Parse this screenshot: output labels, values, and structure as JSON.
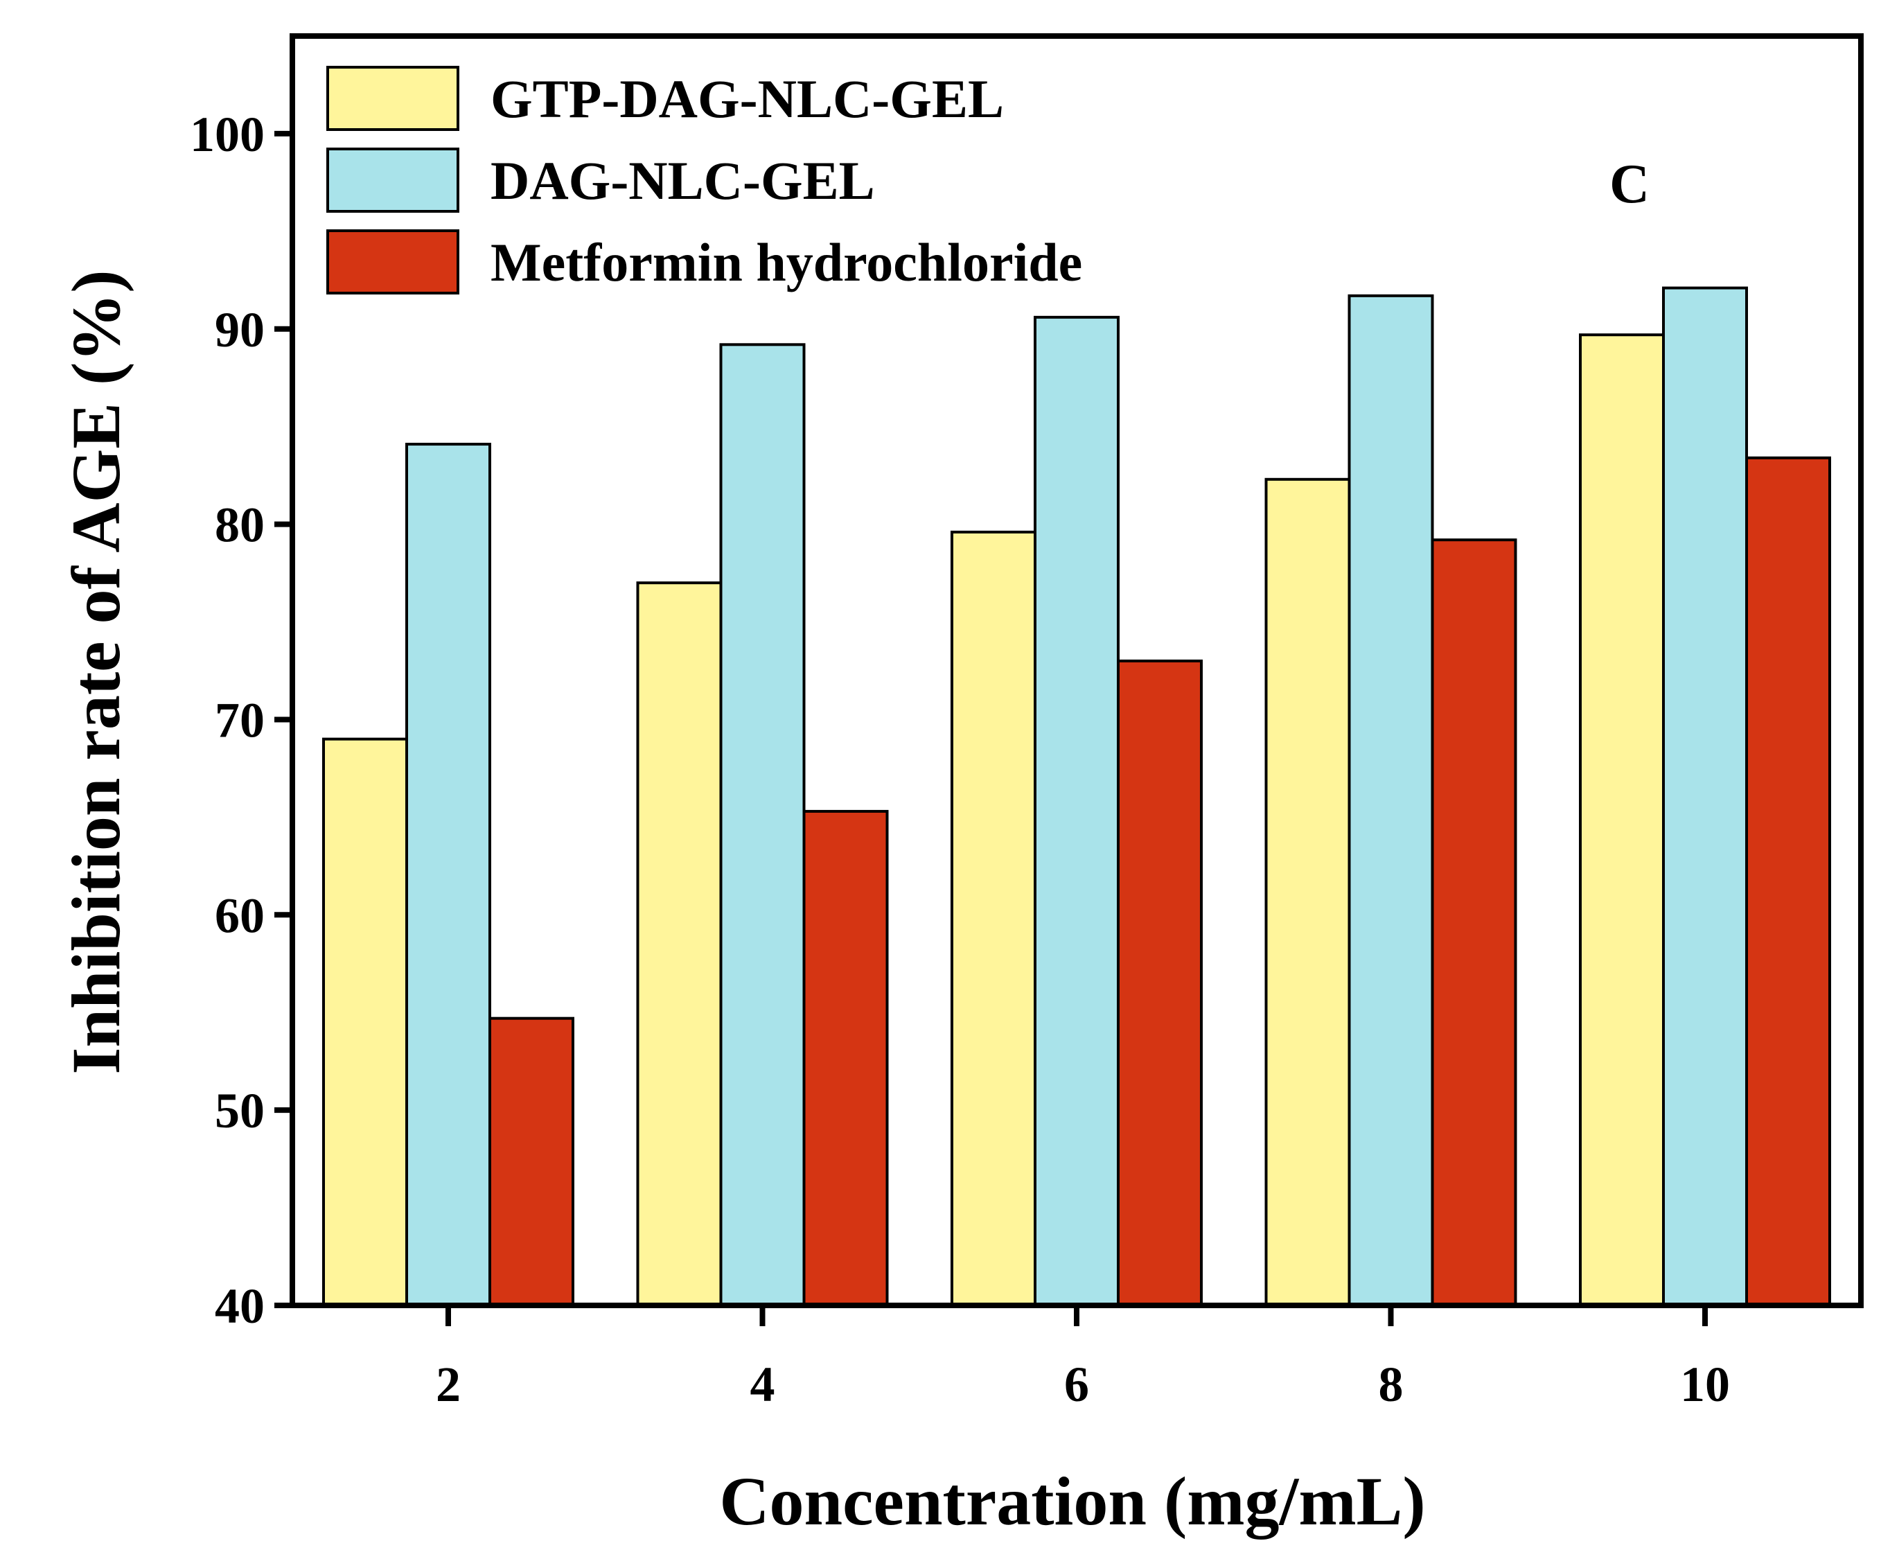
{
  "chart_data": {
    "type": "bar",
    "title": "",
    "panel_label": "C",
    "xlabel": "Concentration (mg/mL)",
    "ylabel": "Inhibition rate of AGE (%)",
    "categories": [
      "2",
      "4",
      "6",
      "8",
      "10"
    ],
    "ylim": [
      40,
      105
    ],
    "yticks": [
      "40",
      "50",
      "60",
      "70",
      "80",
      "90",
      "100"
    ],
    "grid": false,
    "legend_position": "top-left",
    "series": [
      {
        "name": "GTP-DAG-NLC-GEL",
        "color": "#FFF59B",
        "values": [
          69.0,
          77.0,
          79.6,
          82.3,
          89.7
        ]
      },
      {
        "name": "DAG-NLC-GEL",
        "color": "#A9E3EA",
        "values": [
          84.1,
          89.2,
          90.6,
          91.7,
          92.1
        ]
      },
      {
        "name": "Metformin hydrochloride",
        "color": "#D53513",
        "values": [
          54.7,
          65.3,
          73.0,
          79.2,
          83.4
        ]
      }
    ]
  }
}
